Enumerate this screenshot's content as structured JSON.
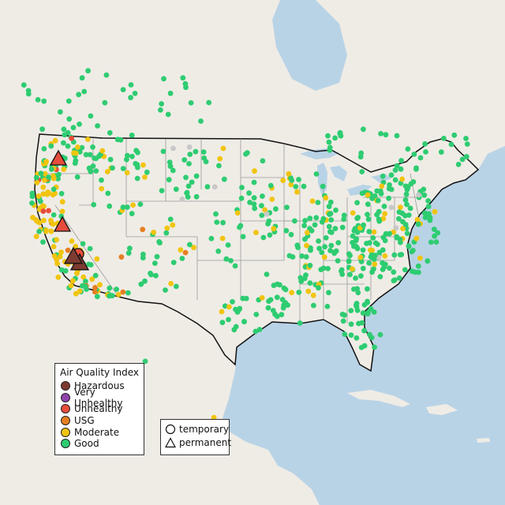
{
  "legend": {
    "title": "Air Quality Index",
    "categories": [
      {
        "label": "Hazardous",
        "color": "#7e3b32"
      },
      {
        "label": "Very Unhealthy",
        "color": "#8e44ad"
      },
      {
        "label": "Unhealthy",
        "color": "#e74c3c"
      },
      {
        "label": "USG",
        "color": "#e67e22"
      },
      {
        "label": "Moderate",
        "color": "#f1c40f"
      },
      {
        "label": "Good",
        "color": "#2ecc71"
      }
    ]
  },
  "monitor_types": [
    {
      "label": "temporary",
      "shape": "circle"
    },
    {
      "label": "permanent",
      "shape": "triangle"
    }
  ],
  "colors": {
    "ocean": "#b9d3e6",
    "land": "#f0ede8",
    "good": "#2ecc71",
    "moderate": "#f1c40f",
    "usg": "#e67e22",
    "unhealthy": "#e74c3c",
    "hazardous": "#7e3b32",
    "inactive": "#c8c8c8"
  }
}
